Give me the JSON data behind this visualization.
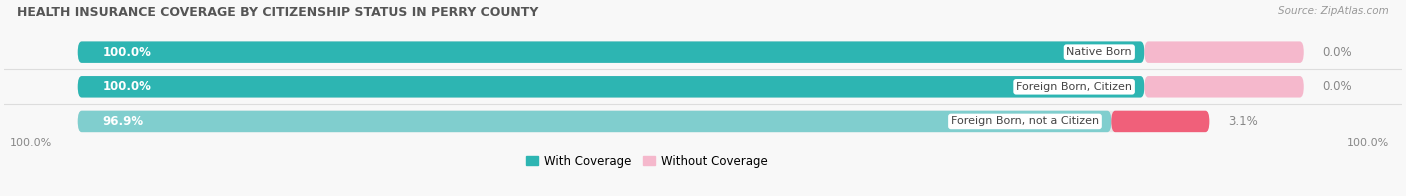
{
  "title": "HEALTH INSURANCE COVERAGE BY CITIZENSHIP STATUS IN PERRY COUNTY",
  "source": "Source: ZipAtlas.com",
  "categories": [
    "Native Born",
    "Foreign Born, Citizen",
    "Foreign Born, not a Citizen"
  ],
  "with_coverage": [
    100.0,
    100.0,
    96.9
  ],
  "without_coverage": [
    0.0,
    0.0,
    3.1
  ],
  "color_with_1": "#2db5b2",
  "color_with_2": "#2db5b2",
  "color_with_3": "#80cece",
  "color_without_12": "#f5b8cc",
  "color_without_3": "#f0607a",
  "bar_bg_color": "#e8e8e8",
  "bg_color": "#f8f8f8",
  "title_color": "#555555",
  "source_color": "#999999",
  "label_left_color": "#ffffff",
  "label_right_color": "#888888",
  "legend_with_color": "#2db5b2",
  "legend_without_color": "#f5b8cc",
  "figsize": [
    14.06,
    1.96
  ],
  "dpi": 100
}
